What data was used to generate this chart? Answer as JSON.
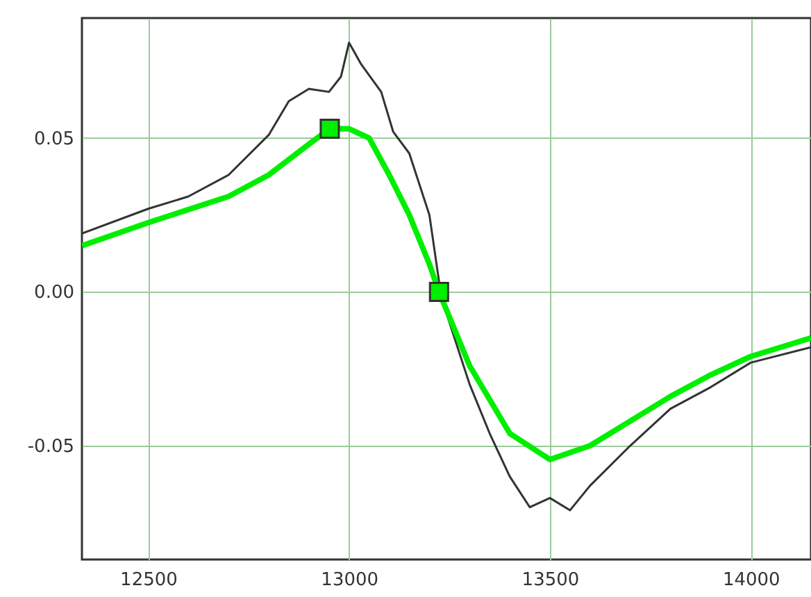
{
  "chart_data": {
    "type": "line",
    "xlim": [
      12335,
      14150
    ],
    "ylim": [
      -0.087,
      0.089
    ],
    "xticks": [
      12500,
      13000,
      13500,
      14000
    ],
    "yticks": [
      {
        "value": -0.05,
        "label": "-0.05"
      },
      {
        "value": 0,
        "label": "0.00"
      },
      0.05
    ],
    "grid": true,
    "series": [
      {
        "color": "#333333",
        "x": [
          12335,
          12500,
          12600,
          12700,
          12800,
          12850,
          12900,
          12950,
          12980,
          13000,
          13030,
          13080,
          13110,
          13150,
          13200,
          13230,
          13300,
          13350,
          13400,
          13450,
          13500,
          13550,
          13600,
          13700,
          13800,
          13900,
          14000,
          14150
        ],
        "values": [
          0.019,
          0.027,
          0.031,
          0.038,
          0.051,
          0.062,
          0.066,
          0.065,
          0.07,
          0.081,
          0.074,
          0.065,
          0.052,
          0.045,
          0.025,
          -0.002,
          -0.03,
          -0.046,
          -0.06,
          -0.07,
          -0.067,
          -0.071,
          -0.063,
          -0.05,
          -0.038,
          -0.031,
          -0.023,
          -0.018
        ]
      },
      {
        "color": "#00ee00",
        "x": [
          12335,
          12500,
          12700,
          12800,
          12900,
          12952,
          13000,
          13050,
          13100,
          13150,
          13200,
          13224,
          13300,
          13400,
          13500,
          13600,
          13700,
          13800,
          13900,
          14000,
          14150
        ],
        "values": [
          0.015,
          0.0225,
          0.031,
          0.038,
          0.048,
          0.053,
          0.053,
          0.05,
          0.038,
          0.025,
          0.009,
          0,
          -0.024,
          -0.046,
          -0.0545,
          -0.05,
          -0.042,
          -0.034,
          -0.027,
          -0.021,
          -0.015
        ]
      },
      {
        "type": "scatter",
        "color": "#00ee00",
        "marker": "square",
        "x": [
          12952,
          13224
        ],
        "values": [
          0.053,
          0
        ]
      }
    ]
  }
}
